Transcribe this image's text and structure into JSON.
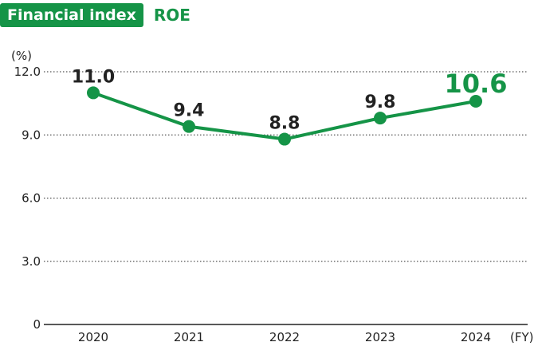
{
  "header": {
    "badge": "Financial index",
    "metric": "ROE"
  },
  "colors": {
    "accent": "#159447",
    "text": "#222222",
    "grid": "#555555"
  },
  "chart_data": {
    "type": "line",
    "title": "ROE",
    "ylabel": "(%)",
    "xlabel": "(FY)",
    "x": [
      "2020",
      "2021",
      "2022",
      "2023",
      "2024"
    ],
    "series": [
      {
        "values": [
          11.0,
          9.4,
          8.8,
          9.8,
          10.6
        ],
        "labels": [
          "11.0",
          "9.4",
          "8.8",
          "9.8",
          "10.6"
        ],
        "highlight_last": true
      }
    ],
    "yticks": [
      {
        "value": 0,
        "label": "0"
      },
      {
        "value": 3,
        "label": "3.0"
      },
      {
        "value": 6,
        "label": "6.0"
      },
      {
        "value": 9,
        "label": "9.0"
      },
      {
        "value": 12,
        "label": "12.0"
      }
    ],
    "ylim": [
      0,
      12
    ],
    "grid": true,
    "grid_style": "dotted"
  }
}
